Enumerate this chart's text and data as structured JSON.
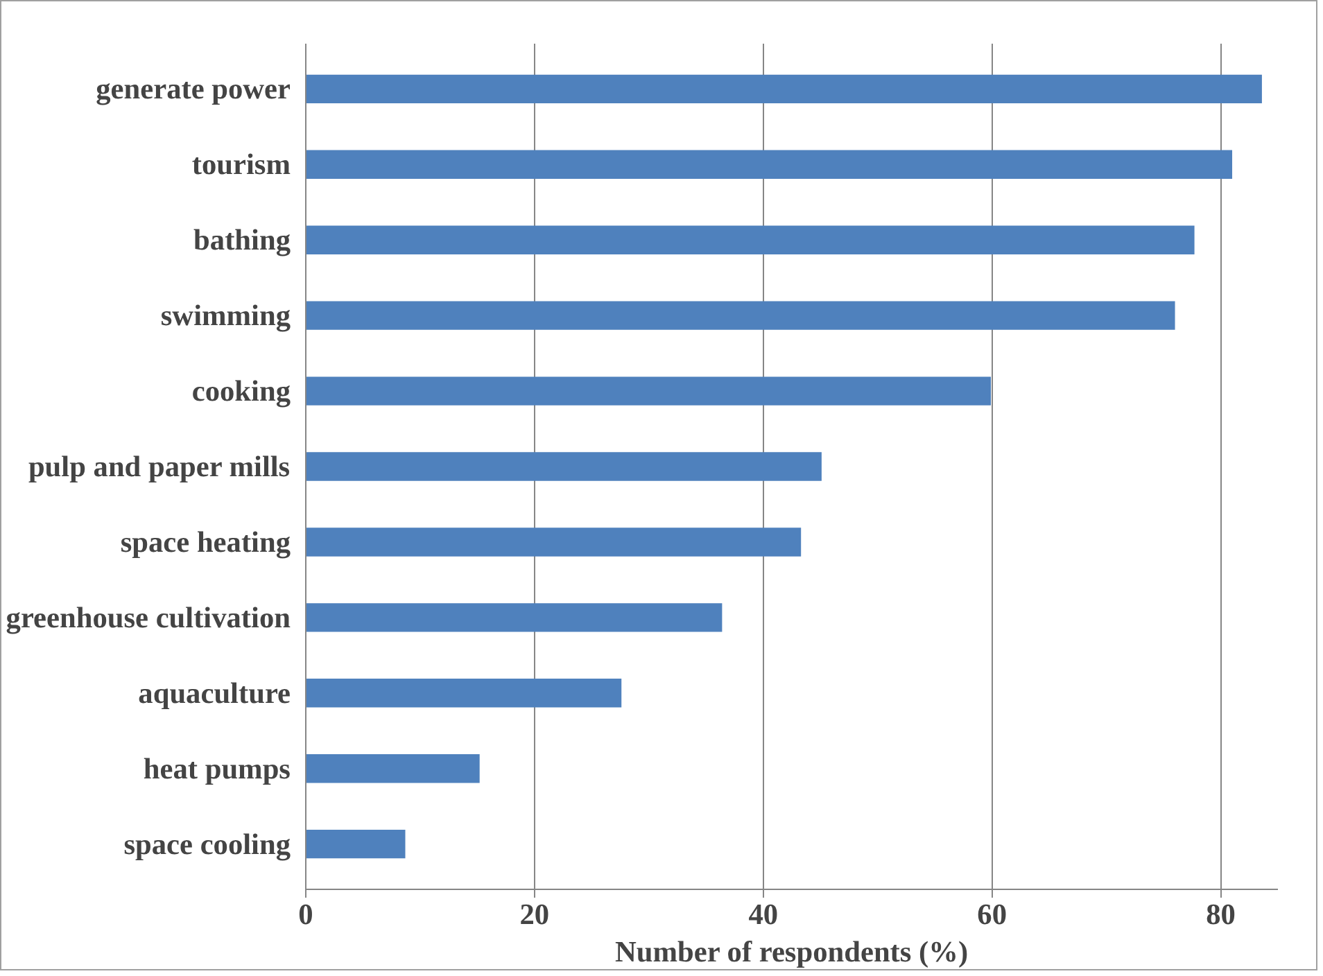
{
  "chart_data": {
    "type": "bar",
    "orientation": "horizontal",
    "xlabel": "Number of respondents (%)",
    "categories": [
      "generate power",
      "tourism",
      "bathing",
      "swimming",
      "cooking",
      "pulp and paper mills",
      "space heating",
      "greenhouse cultivation",
      "aquaculture",
      "heat pumps",
      "space cooling"
    ],
    "values": [
      83.6,
      81.0,
      77.7,
      76.0,
      59.9,
      45.1,
      43.3,
      36.4,
      27.6,
      15.2,
      8.7
    ],
    "color": "#4f81bd",
    "xlim": [
      0,
      85
    ],
    "xticks": [
      0,
      20,
      40,
      60,
      80
    ],
    "grid": "x"
  }
}
